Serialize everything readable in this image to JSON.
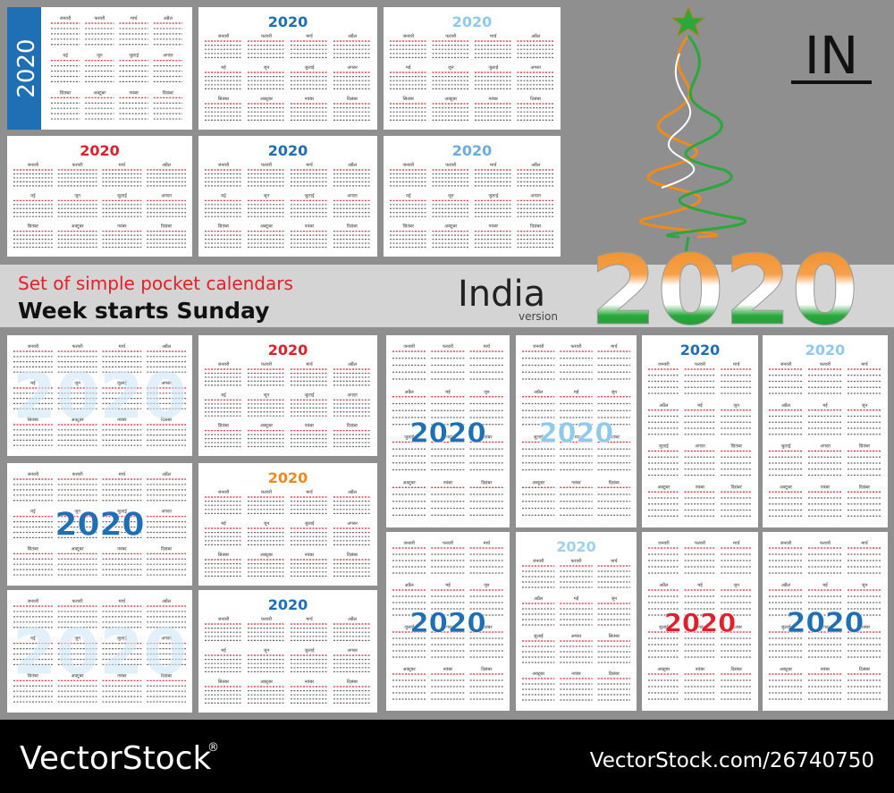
{
  "header": {
    "badge": "IN",
    "line1": "Set of simple pocket calendars",
    "line2": "Week starts Sunday",
    "country": "India",
    "version": "version",
    "year": "2020"
  },
  "months": [
    "जनवरी",
    "फरवरी",
    "मार्च",
    "अप्रैल",
    "मई",
    "जून",
    "जुलाई",
    "अगस्त",
    "सितंबर",
    "अक्टूबर",
    "नवंबर",
    "दिसंबर"
  ],
  "cards": [
    {
      "year": "2020",
      "accent": "#1f6fb5"
    },
    {
      "year": "2020",
      "accent": "#1f6fb5"
    },
    {
      "year": "2020",
      "accent": "#8fc9ec"
    },
    {
      "year": "2020",
      "accent": "#e0202a"
    },
    {
      "year": "2020",
      "accent": "#1f6fb5"
    },
    {
      "year": "2020",
      "accent": "#6aaee0"
    },
    {
      "year": "2020",
      "accent": "#cfe6f7"
    },
    {
      "year": "2020",
      "accent": "#e0202a"
    },
    {
      "year": "2020",
      "accent": "#1f6fb5"
    },
    {
      "year": "2020",
      "accent": "#f08a1c"
    },
    {
      "year": "2020",
      "accent": "#cfe6f7"
    },
    {
      "year": "2020",
      "accent": "#1f6fb5"
    },
    {
      "year": "2020",
      "accent": "#1f6fb5"
    },
    {
      "year": "2020",
      "accent": "#8fc9ec"
    },
    {
      "year": "2020",
      "accent": "#1f6fb5"
    },
    {
      "year": "2020",
      "accent": "#8fc9ec"
    },
    {
      "year": "2020",
      "accent": "#1f6fb5"
    },
    {
      "year": "2020",
      "accent": "#9fd2f0"
    },
    {
      "year": "2020",
      "accent": "#e0202a"
    },
    {
      "year": "2020",
      "accent": "#1f6fb5"
    }
  ],
  "footer": {
    "brand": "VectorStock",
    "registered": "®",
    "url": "VectorStock.com/26740750"
  }
}
